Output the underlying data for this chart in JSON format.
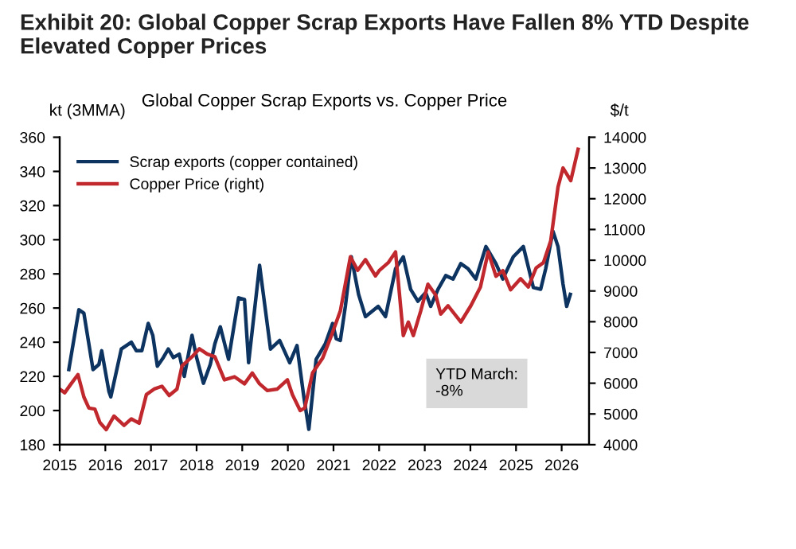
{
  "chart_data": {
    "type": "line",
    "title": "Exhibit 20: Global Copper Scrap Exports Have Fallen 8% YTD Despite Elevated Copper Prices",
    "subtitle": "Global Copper Scrap Exports vs. Copper Price",
    "ylabel": "kt (3MMA)",
    "y2label": "$/t",
    "series": [
      {
        "name": "Scrap exports (copper contained)",
        "color": "#0d3461",
        "x": [
          2015.2,
          2015.42,
          2015.53,
          2015.73,
          2015.86,
          2015.92,
          2016.08,
          2016.12,
          2016.35,
          2016.46,
          2016.57,
          2016.68,
          2016.8,
          2016.94,
          2017.04,
          2017.14,
          2017.27,
          2017.38,
          2017.49,
          2017.62,
          2017.73,
          2017.9,
          2018.0,
          2018.15,
          2018.3,
          2018.4,
          2018.52,
          2018.7,
          2018.92,
          2019.05,
          2019.14,
          2019.38,
          2019.62,
          2019.82,
          2020.04,
          2020.2,
          2020.35,
          2020.46,
          2020.62,
          2020.82,
          2020.98,
          2021.06,
          2021.15,
          2021.26,
          2021.39,
          2021.55,
          2021.7,
          2021.98,
          2022.14,
          2022.36,
          2022.53,
          2022.69,
          2022.85,
          2023.02,
          2023.13,
          2023.29,
          2023.46,
          2023.62,
          2023.79,
          2023.95,
          2024.12,
          2024.34,
          2024.56,
          2024.71,
          2024.94,
          2025.16,
          2025.38,
          2025.54,
          2025.65,
          2025.81,
          2025.92,
          2026.03,
          2026.11,
          2026.19
        ],
        "values": [
          224,
          259,
          257,
          224,
          227,
          235,
          211,
          208,
          236,
          238,
          240,
          235,
          235,
          251,
          244,
          226,
          231,
          236,
          231,
          233,
          220,
          244,
          231,
          216,
          227,
          239,
          249,
          230,
          266,
          265,
          228,
          285,
          236,
          241,
          228,
          238,
          208,
          189,
          230,
          239,
          251,
          242,
          241,
          261,
          290,
          268,
          255,
          261,
          255,
          283,
          290,
          271,
          264,
          269,
          261,
          271,
          279,
          277,
          286,
          283,
          277,
          296,
          286,
          277,
          290,
          296,
          272,
          271,
          283,
          305,
          296,
          274,
          261,
          268
        ]
      },
      {
        "name": "Copper Price (right)",
        "color": "#c0282d",
        "axis": "y2",
        "x": [
          2015.0,
          2015.11,
          2015.25,
          2015.4,
          2015.53,
          2015.64,
          2015.77,
          2015.88,
          2016.02,
          2016.19,
          2016.41,
          2016.57,
          2016.74,
          2016.9,
          2017.07,
          2017.24,
          2017.4,
          2017.57,
          2017.68,
          2017.9,
          2018.06,
          2018.23,
          2018.4,
          2018.61,
          2018.83,
          2019.05,
          2019.22,
          2019.38,
          2019.55,
          2019.77,
          2019.99,
          2020.1,
          2020.27,
          2020.37,
          2020.54,
          2020.76,
          2020.98,
          2021.15,
          2021.37,
          2021.53,
          2021.7,
          2021.92,
          2022.0,
          2022.2,
          2022.36,
          2022.53,
          2022.64,
          2022.75,
          2022.91,
          2023.07,
          2023.24,
          2023.35,
          2023.51,
          2023.79,
          2024.01,
          2024.22,
          2024.39,
          2024.56,
          2024.71,
          2024.88,
          2025.1,
          2025.27,
          2025.44,
          2025.6,
          2025.76,
          2025.92,
          2026.03,
          2026.2,
          2026.36
        ],
        "values": [
          5810,
          5690,
          5980,
          6280,
          5550,
          5190,
          5160,
          4720,
          4490,
          4930,
          4630,
          4840,
          4700,
          5630,
          5810,
          5900,
          5600,
          5810,
          6560,
          6860,
          7120,
          6950,
          6860,
          6110,
          6210,
          5980,
          6330,
          5980,
          5760,
          5810,
          6110,
          5630,
          5110,
          5190,
          6330,
          6810,
          7650,
          8350,
          10110,
          9670,
          10020,
          9490,
          9660,
          9920,
          10270,
          7550,
          7990,
          7550,
          8340,
          9220,
          8870,
          8250,
          8520,
          7990,
          8520,
          9130,
          10270,
          9480,
          9660,
          9040,
          9400,
          9130,
          9750,
          9920,
          10630,
          12380,
          13000,
          12590,
          13610
        ]
      }
    ],
    "xlim": [
      2015,
      2026.6
    ],
    "xticks": [
      2015,
      2016,
      2017,
      2018,
      2019,
      2020,
      2021,
      2022,
      2023,
      2024,
      2025,
      2026
    ],
    "ylim": [
      180,
      360
    ],
    "yticks": [
      180,
      200,
      220,
      240,
      260,
      280,
      300,
      320,
      340,
      360
    ],
    "y2lim": [
      4000,
      14000
    ],
    "y2ticks": [
      4000,
      5000,
      6000,
      7000,
      8000,
      9000,
      10000,
      11000,
      12000,
      13000,
      14000
    ],
    "annotations": [
      "YTD March:\n-8%"
    ],
    "legend": "top left",
    "grid": false,
    "marker": "none",
    "line_style": "solid"
  }
}
